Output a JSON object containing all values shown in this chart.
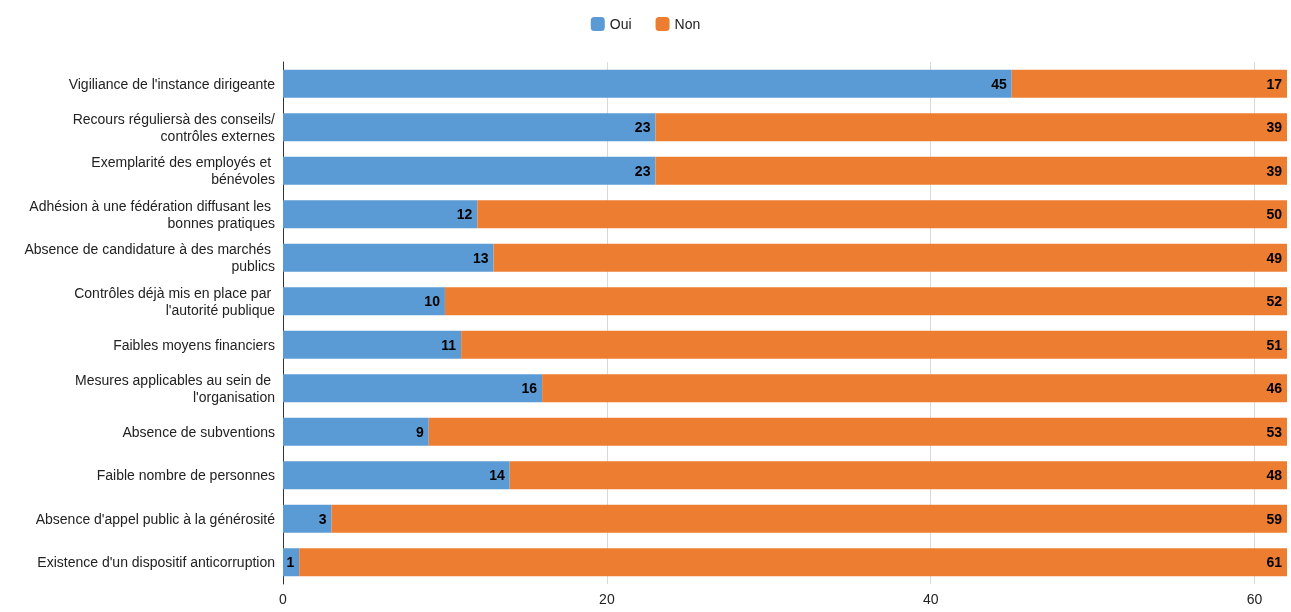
{
  "chart_data": {
    "type": "bar",
    "orientation": "horizontal",
    "stacked": true,
    "data_labels": true,
    "legend": "top",
    "grid": "x",
    "categories": [
      "Vigiliance de l'instance dirigeante",
      "Recours réguliersà des conseils/contrôles externes",
      "Exemplarité des employés et bénévoles",
      "Adhésion à une fédération diffusant les bonnes pratiques",
      "Absence de candidature à des marchés publics",
      "Contrôles déjà mis en place par l'autorité publique",
      "Faibles moyens financiers",
      "Mesures applicables au sein de l'organisation",
      "Absence de subventions",
      "Faible nombre de personnes",
      "Absence d'appel public à la générosité",
      "Existence d'un dispositif anticorruption"
    ],
    "series": [
      {
        "name": "Oui",
        "color": "#5b9bd5",
        "values": [
          45,
          23,
          23,
          12,
          13,
          10,
          11,
          16,
          9,
          14,
          3,
          1
        ]
      },
      {
        "name": "Non",
        "color": "#ed7d31",
        "values": [
          17,
          39,
          39,
          50,
          49,
          52,
          51,
          46,
          53,
          48,
          59,
          61
        ]
      }
    ],
    "xlim": [
      0,
      62
    ],
    "xticks": [
      0,
      20,
      40,
      60
    ]
  }
}
